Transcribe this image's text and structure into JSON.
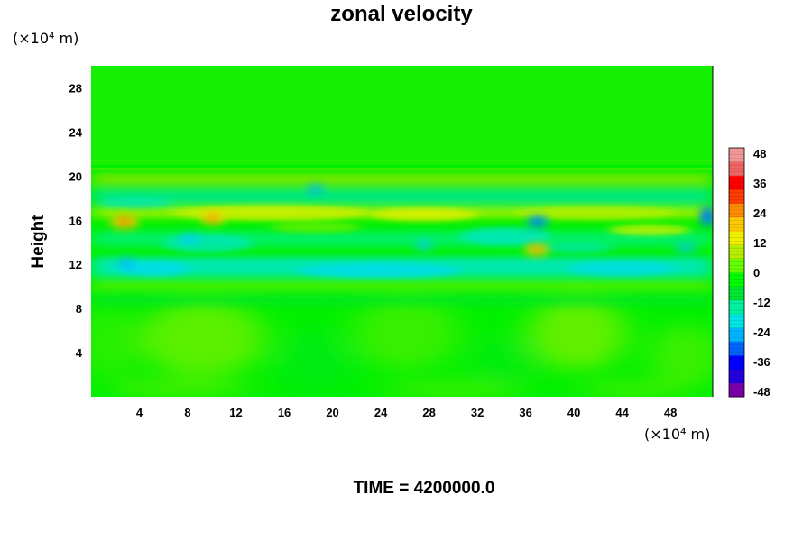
{
  "chart_data": {
    "type": "heatmap",
    "title": "zonal velocity",
    "ylabel": "Height",
    "x_unit": "(×10⁴ m)",
    "y_unit": "(×10⁴ m)",
    "footer": "TIME = 4200000.0",
    "xlim": [
      0,
      51.5
    ],
    "ylim": [
      0,
      30
    ],
    "xticks": [
      4,
      8,
      12,
      16,
      20,
      24,
      28,
      32,
      36,
      40,
      44,
      48
    ],
    "yticks": [
      4,
      8,
      12,
      16,
      20,
      24,
      28
    ],
    "colorbar": {
      "min": -48,
      "max": 48,
      "ticks": [
        48,
        36,
        24,
        12,
        0,
        -12,
        -24,
        -36,
        -48
      ],
      "colors": [
        "#7a00a8",
        "#2400e0",
        "#0000ff",
        "#0064ff",
        "#00b4ff",
        "#00e6e6",
        "#00f0a0",
        "#00e632",
        "#00ff00",
        "#64ff00",
        "#b4f000",
        "#f0f000",
        "#ffc800",
        "#ff8c00",
        "#ff3c00",
        "#ff0000",
        "#f06464",
        "#f09696"
      ]
    },
    "features": [
      {
        "x": 3,
        "y": 15.5,
        "value": 24
      },
      {
        "x": 10,
        "y": 16,
        "value": 22
      },
      {
        "x": 36,
        "y": 13,
        "value": 20
      },
      {
        "x": 36.5,
        "y": 15.5,
        "value": -20
      },
      {
        "x": 51,
        "y": 16,
        "value": -18
      },
      {
        "x": 18.5,
        "y": 18,
        "value": -10
      }
    ]
  }
}
